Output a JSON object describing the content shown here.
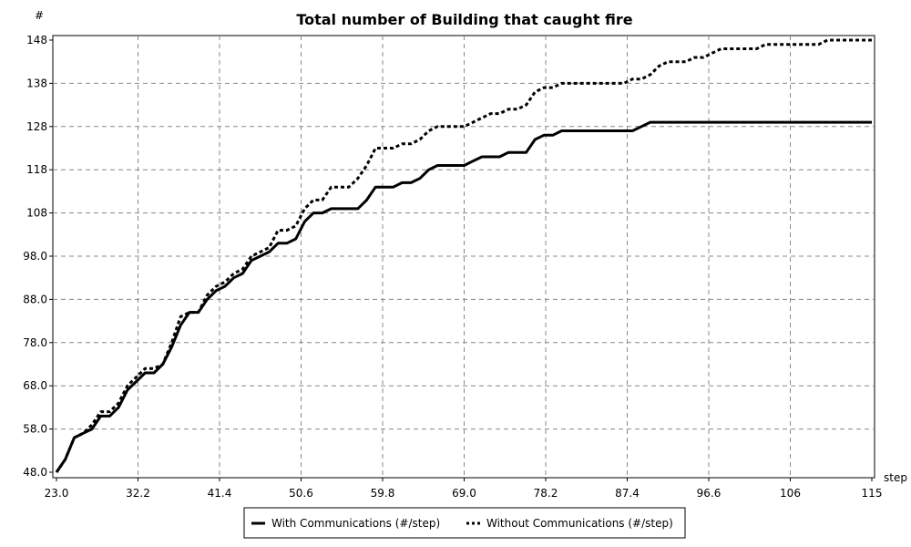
{
  "chart_data": {
    "type": "line",
    "title": "Total number of Building that caught fire",
    "xlabel": "step",
    "ylabel": "#",
    "xlim": [
      23.0,
      115
    ],
    "ylim": [
      48.0,
      148
    ],
    "x_ticks": [
      "23.0",
      "32.2",
      "41.4",
      "50.6",
      "59.8",
      "69.0",
      "78.2",
      "87.4",
      "96.6",
      "106",
      "115"
    ],
    "y_ticks": [
      "48.0",
      "58.0",
      "68.0",
      "78.0",
      "88.0",
      "98.0",
      "108",
      "118",
      "128",
      "138",
      "148"
    ],
    "x_tick_values": [
      23.0,
      32.2,
      41.4,
      50.6,
      59.8,
      69.0,
      78.2,
      87.4,
      96.6,
      105.8,
      115.0
    ],
    "y_tick_values": [
      48,
      58,
      68,
      78,
      88,
      98,
      108,
      118,
      128,
      138,
      148
    ],
    "grid": true,
    "legend_position": "bottom",
    "series": [
      {
        "name": "With Communications (#/step)",
        "style": "solid",
        "x": [
          23,
          24,
          25,
          26,
          27,
          28,
          29,
          30,
          31,
          32,
          33,
          34,
          35,
          36,
          37,
          38,
          39,
          40,
          41,
          42,
          43,
          44,
          45,
          46,
          47,
          48,
          49,
          50,
          51,
          52,
          53,
          54,
          55,
          56,
          57,
          58,
          59,
          60,
          61,
          62,
          63,
          64,
          65,
          66,
          67,
          68,
          69,
          70,
          71,
          72,
          73,
          74,
          75,
          76,
          77,
          78,
          79,
          80,
          81,
          82,
          83,
          84,
          85,
          86,
          87,
          88,
          89,
          90,
          91,
          92,
          93,
          94,
          95,
          96,
          97,
          98,
          99,
          100,
          101,
          102,
          103,
          104,
          105,
          106,
          107,
          108,
          109,
          110,
          111,
          112,
          113,
          114,
          115
        ],
        "y": [
          48,
          51,
          56,
          57,
          58,
          61,
          61,
          63,
          67,
          69,
          71,
          71,
          73,
          77,
          82,
          85,
          85,
          88,
          90,
          91,
          93,
          94,
          97,
          98,
          99,
          101,
          101,
          102,
          106,
          108,
          108,
          109,
          109,
          109,
          109,
          111,
          114,
          114,
          114,
          115,
          115,
          116,
          118,
          119,
          119,
          119,
          119,
          120,
          121,
          121,
          121,
          122,
          122,
          122,
          125,
          126,
          126,
          127,
          127,
          127,
          127,
          127,
          127,
          127,
          127,
          127,
          128,
          129,
          129,
          129,
          129,
          129,
          129,
          129,
          129,
          129,
          129,
          129,
          129,
          129,
          129,
          129,
          129,
          129,
          129,
          129,
          129,
          129,
          129,
          129,
          129,
          129,
          129
        ]
      },
      {
        "name": "Without Communications (#/step)",
        "style": "dashed",
        "x": [
          23,
          24,
          25,
          26,
          27,
          28,
          29,
          30,
          31,
          32,
          33,
          34,
          35,
          36,
          37,
          38,
          39,
          40,
          41,
          42,
          43,
          44,
          45,
          46,
          47,
          48,
          49,
          50,
          51,
          52,
          53,
          54,
          55,
          56,
          57,
          58,
          59,
          60,
          61,
          62,
          63,
          64,
          65,
          66,
          67,
          68,
          69,
          70,
          71,
          72,
          73,
          74,
          75,
          76,
          77,
          78,
          79,
          80,
          81,
          82,
          83,
          84,
          85,
          86,
          87,
          88,
          89,
          90,
          91,
          92,
          93,
          94,
          95,
          96,
          97,
          98,
          99,
          100,
          101,
          102,
          103,
          104,
          105,
          106,
          107,
          108,
          109,
          110,
          111,
          112,
          113,
          114,
          115
        ],
        "y": [
          48,
          51,
          56,
          57,
          59,
          62,
          62,
          64,
          68,
          70,
          72,
          72,
          73,
          78,
          84,
          85,
          85,
          89,
          91,
          92,
          94,
          95,
          98,
          99,
          100,
          104,
          104,
          105,
          109,
          111,
          111,
          114,
          114,
          114,
          116,
          119,
          123,
          123,
          123,
          124,
          124,
          125,
          127,
          128,
          128,
          128,
          128,
          129,
          130,
          131,
          131,
          132,
          132,
          133,
          136,
          137,
          137,
          138,
          138,
          138,
          138,
          138,
          138,
          138,
          138,
          139,
          139,
          140,
          142,
          143,
          143,
          143,
          144,
          144,
          145,
          146,
          146,
          146,
          146,
          146,
          147,
          147,
          147,
          147,
          147,
          147,
          147,
          148,
          148,
          148,
          148,
          148,
          148
        ]
      }
    ]
  }
}
